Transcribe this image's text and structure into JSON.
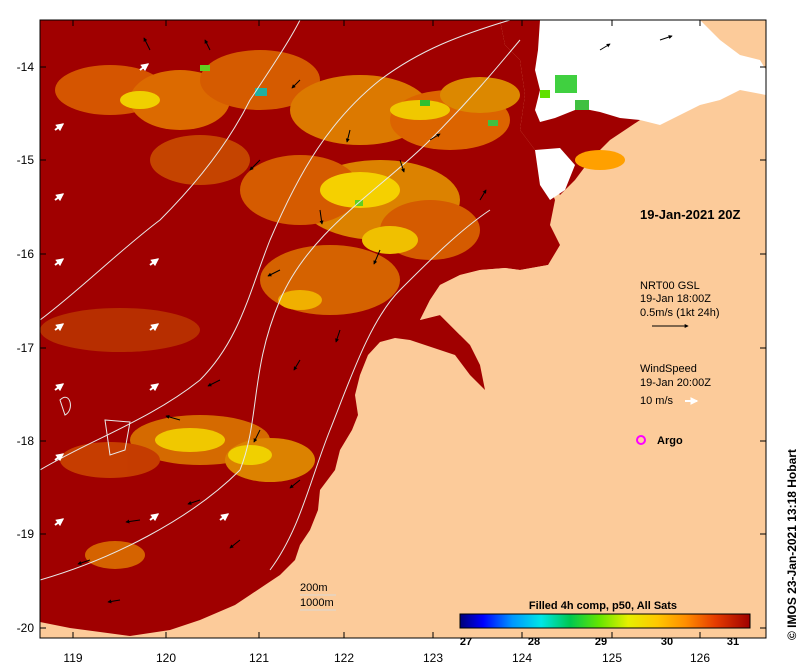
{
  "map": {
    "x_ticks": [
      "119",
      "120",
      "121",
      "122",
      "123",
      "124",
      "125",
      "126"
    ],
    "y_ticks": [
      "-14",
      "-15",
      "-16",
      "-17",
      "-18",
      "-19",
      "-20"
    ],
    "image_time": "19-Jan-2021 20Z",
    "current_legend": {
      "line1": "NRT00 GSL",
      "line2": "19-Jan 18:00Z",
      "line3": "0.5m/s (1kt 24h)"
    },
    "wind_legend": {
      "line1": "WindSpeed",
      "line2": "19-Jan 20:00Z",
      "line3": "10 m/s"
    },
    "argo_label": "Argo",
    "depth_contours": [
      "200m",
      "1000m"
    ],
    "colorbar": {
      "title": "Filled 4h comp, p50, All Sats",
      "ticks": [
        "27",
        "28",
        "29",
        "30",
        "31"
      ]
    },
    "credit": "© IMOS 23-Jan-2021 13:18 Hobart",
    "colors": {
      "land": "#fccb9a",
      "warm_sea": "#a00000",
      "argo": "#ff00ff"
    }
  }
}
